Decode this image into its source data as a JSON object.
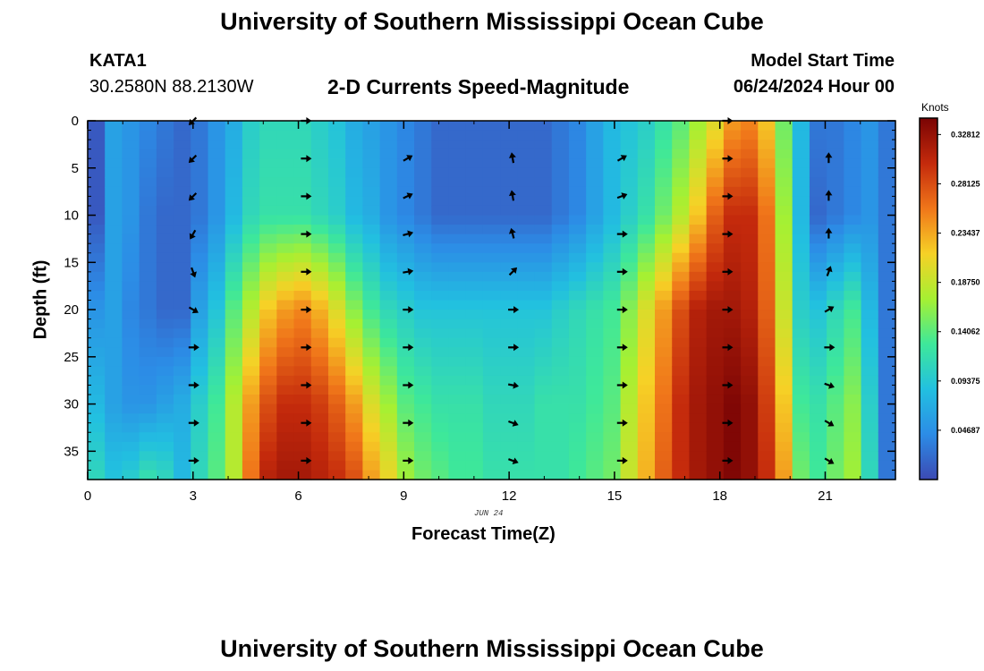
{
  "header": {
    "title": "University of Southern Mississippi Ocean Cube",
    "station": "KATA1",
    "coords": "30.2580N  88.2130W",
    "product": "2-D Currents Speed-Magnitude",
    "start_label": "Model Start Time",
    "start_value": "06/24/2024 Hour 00"
  },
  "footer": {
    "title": "University of Southern Mississippi Ocean Cube"
  },
  "chart_data": {
    "type": "heatmap",
    "title": "2-D Currents Speed-Magnitude",
    "xlabel": "Forecast Time(Z)",
    "ylabel": "Depth (ft)",
    "date_label": "JUN 24",
    "xlim": [
      0,
      23
    ],
    "ylim": [
      38,
      0
    ],
    "x_ticks": [
      0,
      3,
      6,
      9,
      12,
      15,
      18,
      21
    ],
    "y_ticks": [
      0,
      5,
      10,
      15,
      20,
      25,
      30,
      35
    ],
    "colorbar": {
      "unit": "Knots",
      "range": [
        0,
        0.34375
      ],
      "ticks": [
        "0.32812",
        "0.28125",
        "0.23437",
        "0.18750",
        "0.14062",
        "0.09375",
        "0.04687"
      ],
      "tick_values": [
        0.328125,
        0.28125,
        0.234375,
        0.1875,
        0.140625,
        0.09375,
        0.046875
      ]
    },
    "speed_profile": {
      "depths_ft": [
        0,
        10,
        20,
        30,
        38
      ],
      "hours": [
        0,
        0.5,
        1,
        1.5,
        2,
        2.5,
        3,
        3.5,
        4,
        4.5,
        5,
        5.5,
        6,
        6.5,
        7,
        7.5,
        8,
        8.5,
        9,
        9.5,
        10,
        10.5,
        11,
        11.5,
        12,
        12.5,
        13,
        13.5,
        14,
        14.5,
        15,
        15.5,
        16,
        16.5,
        17,
        17.5,
        18,
        18.5,
        19,
        19.5,
        20,
        20.5,
        21,
        21.5,
        22,
        22.5,
        23
      ],
      "values_knots": [
        [
          0.01,
          0.06,
          0.05,
          0.04,
          0.03,
          0.02,
          0.03,
          0.05,
          0.07,
          0.1,
          0.11,
          0.11,
          0.11,
          0.1,
          0.09,
          0.07,
          0.06,
          0.05,
          0.04,
          0.03,
          0.02,
          0.02,
          0.02,
          0.02,
          0.02,
          0.02,
          0.02,
          0.03,
          0.04,
          0.06,
          0.08,
          0.09,
          0.1,
          0.12,
          0.14,
          0.17,
          0.2,
          0.24,
          0.25,
          0.22,
          0.15,
          0.08,
          0.03,
          0.03,
          0.04,
          0.05,
          0.03
        ],
        [
          0.01,
          0.06,
          0.05,
          0.03,
          0.02,
          0.02,
          0.03,
          0.05,
          0.08,
          0.11,
          0.12,
          0.12,
          0.12,
          0.11,
          0.1,
          0.08,
          0.07,
          0.05,
          0.04,
          0.03,
          0.02,
          0.02,
          0.02,
          0.02,
          0.02,
          0.02,
          0.02,
          0.03,
          0.04,
          0.06,
          0.08,
          0.1,
          0.12,
          0.15,
          0.18,
          0.22,
          0.27,
          0.3,
          0.3,
          0.26,
          0.17,
          0.08,
          0.02,
          0.03,
          0.04,
          0.05,
          0.03
        ],
        [
          0.05,
          0.06,
          0.04,
          0.03,
          0.02,
          0.02,
          0.06,
          0.09,
          0.14,
          0.18,
          0.22,
          0.24,
          0.25,
          0.23,
          0.2,
          0.16,
          0.13,
          0.11,
          0.1,
          0.09,
          0.09,
          0.09,
          0.09,
          0.09,
          0.09,
          0.09,
          0.09,
          0.1,
          0.11,
          0.12,
          0.13,
          0.16,
          0.2,
          0.24,
          0.28,
          0.31,
          0.32,
          0.32,
          0.31,
          0.27,
          0.19,
          0.1,
          0.09,
          0.11,
          0.13,
          0.08,
          0.03
        ],
        [
          0.08,
          0.06,
          0.05,
          0.05,
          0.06,
          0.07,
          0.1,
          0.13,
          0.18,
          0.24,
          0.28,
          0.3,
          0.3,
          0.29,
          0.27,
          0.24,
          0.2,
          0.17,
          0.14,
          0.13,
          0.12,
          0.12,
          0.12,
          0.11,
          0.11,
          0.11,
          0.12,
          0.12,
          0.12,
          0.13,
          0.14,
          0.18,
          0.22,
          0.26,
          0.3,
          0.32,
          0.33,
          0.34,
          0.33,
          0.29,
          0.22,
          0.13,
          0.12,
          0.14,
          0.16,
          0.1,
          0.03
        ],
        [
          0.11,
          0.09,
          0.1,
          0.12,
          0.11,
          0.08,
          0.11,
          0.14,
          0.18,
          0.26,
          0.31,
          0.32,
          0.32,
          0.31,
          0.3,
          0.28,
          0.24,
          0.21,
          0.17,
          0.15,
          0.14,
          0.13,
          0.13,
          0.12,
          0.12,
          0.12,
          0.12,
          0.12,
          0.13,
          0.14,
          0.15,
          0.19,
          0.23,
          0.27,
          0.3,
          0.32,
          0.33,
          0.34,
          0.33,
          0.3,
          0.24,
          0.15,
          0.13,
          0.15,
          0.17,
          0.11,
          0.03
        ]
      ]
    },
    "vectors": {
      "hours": [
        0.15,
        3.0,
        6.2,
        9.1,
        12.1,
        15.2,
        18.2,
        21.1
      ],
      "depths_ft": [
        0,
        4,
        8,
        12,
        16,
        20,
        24,
        28,
        32,
        36
      ],
      "directions_deg": [
        [
          null,
          225,
          90,
          null,
          null,
          null,
          90,
          null
        ],
        [
          null,
          225,
          90,
          60,
          350,
          60,
          90,
          0
        ],
        [
          null,
          225,
          90,
          65,
          350,
          70,
          90,
          0
        ],
        [
          null,
          210,
          90,
          75,
          345,
          90,
          90,
          0
        ],
        [
          null,
          160,
          90,
          80,
          45,
          90,
          90,
          20
        ],
        [
          null,
          120,
          90,
          90,
          90,
          90,
          90,
          60
        ],
        [
          null,
          90,
          90,
          90,
          90,
          90,
          90,
          90
        ],
        [
          null,
          90,
          90,
          90,
          100,
          90,
          90,
          110
        ],
        [
          null,
          90,
          90,
          90,
          110,
          90,
          90,
          120
        ],
        [
          null,
          90,
          90,
          90,
          110,
          90,
          90,
          120
        ]
      ]
    }
  }
}
